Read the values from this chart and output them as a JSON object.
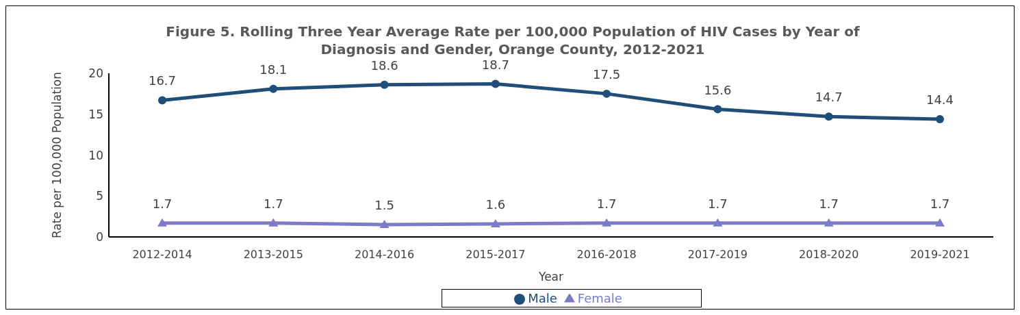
{
  "chart_data": {
    "type": "line",
    "title": "Figure 5. Rolling Three Year Average Rate per 100,000 Population of HIV Cases by Year of Diagnosis and Gender, Orange County, 2012-2021",
    "xlabel": "Year",
    "ylabel": "Rate per 100,000 Population",
    "categories": [
      "2012-2014",
      "2013-2015",
      "2014-2016",
      "2015-2017",
      "2016-2018",
      "2017-2019",
      "2018-2020",
      "2019-2021"
    ],
    "series": [
      {
        "name": "Male",
        "color": "#1f4e79",
        "marker": "circle",
        "values": [
          16.7,
          18.1,
          18.6,
          18.7,
          17.5,
          15.6,
          14.7,
          14.4
        ]
      },
      {
        "name": "Female",
        "color": "#7b7bc8",
        "marker": "triangle",
        "values": [
          1.7,
          1.7,
          1.5,
          1.6,
          1.7,
          1.7,
          1.7,
          1.7
        ]
      }
    ],
    "ylim": [
      0,
      20
    ],
    "yticks": [
      0,
      5,
      10,
      15,
      20
    ],
    "grid": false,
    "legend": "bottom",
    "data_labels": true,
    "line_style": "solid"
  }
}
